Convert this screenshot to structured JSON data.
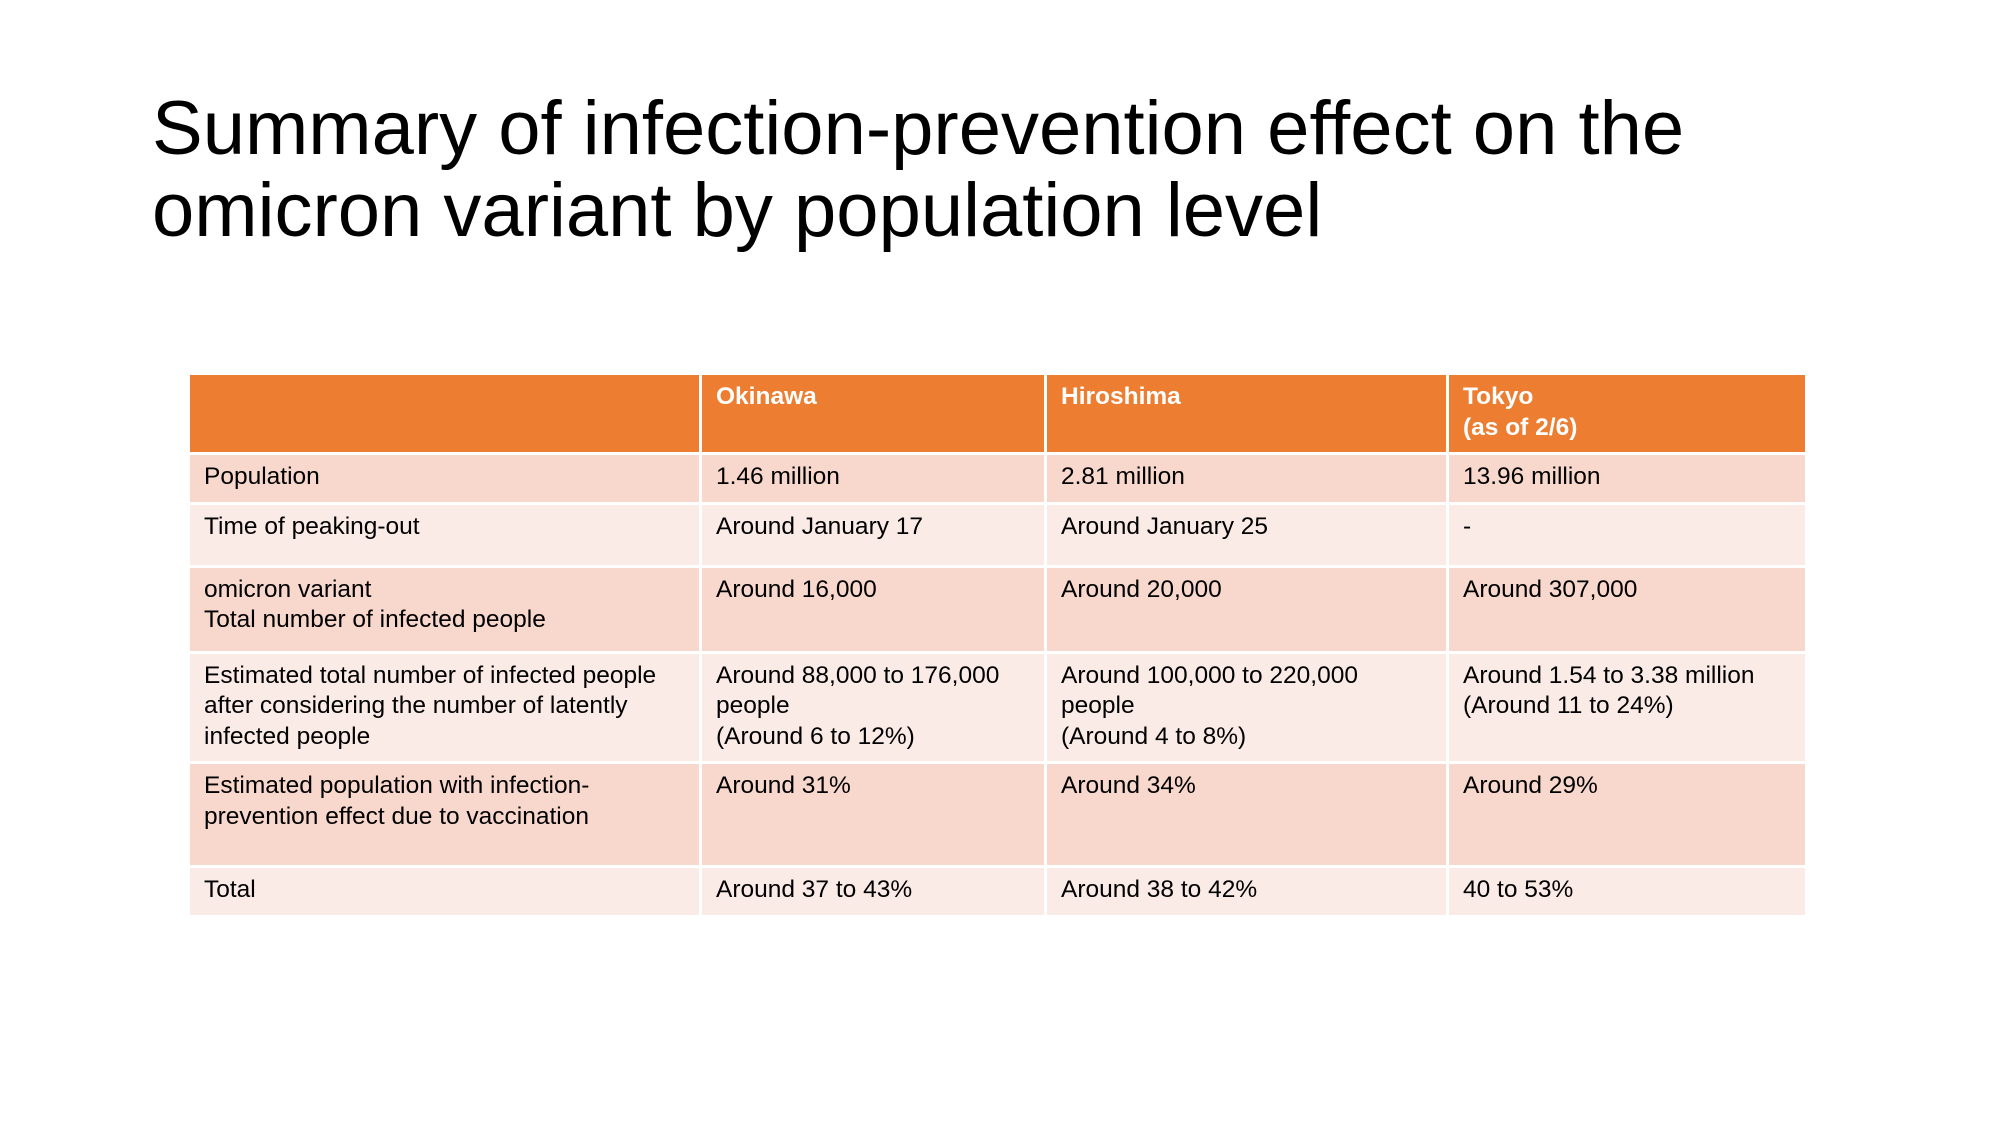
{
  "slide": {
    "title_lines": [
      "Summary of infection-prevention effect on the",
      "omicron variant by population level"
    ]
  },
  "table": {
    "headers": [
      "",
      "Okinawa",
      "Hiroshima",
      "Tokyo\n(as of 2/6)"
    ],
    "rows": [
      [
        "Population",
        "1.46 million",
        "2.81 million",
        "13.96 million"
      ],
      [
        "Time of peaking-out",
        "Around January 17",
        "Around January 25",
        "-"
      ],
      [
        "omicron variant\nTotal number of infected people",
        "Around 16,000",
        "Around 20,000",
        "Around 307,000"
      ],
      [
        "Estimated total number of infected people after considering the number of latently infected people",
        "Around 88,000 to 176,000 people\n(Around 6 to 12%)",
        "Around 100,000 to 220,000 people\n(Around 4 to 8%)",
        "Around 1.54 to 3.38 million\n(Around 11 to 24%)"
      ],
      [
        "Estimated population with infection-prevention effect due to vaccination",
        "Around 31%",
        "Around 34%",
        "Around 29%"
      ],
      [
        "Total",
        "Around 37 to 43%",
        "Around 38 to 42%",
        "40 to 53%"
      ]
    ]
  },
  "colors": {
    "header_bg": "#ed7d31",
    "row_odd_bg": "#f8d8cc",
    "row_even_bg": "#fbebe6",
    "header_text": "#ffffff"
  }
}
